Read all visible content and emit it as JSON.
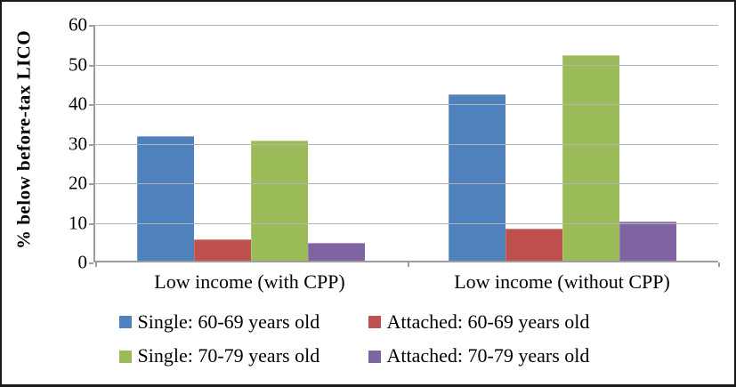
{
  "chart_data": {
    "type": "bar",
    "title": "",
    "ylabel": "% below before-tax LICO",
    "xlabel": "",
    "ylim": [
      0,
      60
    ],
    "yticks": [
      0,
      10,
      20,
      30,
      40,
      50,
      60
    ],
    "grid": true,
    "legend_position": "bottom",
    "categories": [
      "Low income (with CPP)",
      "Low income (without CPP)"
    ],
    "series": [
      {
        "name": "Single: 60-69 years old",
        "color": "#4F81BD",
        "values": [
          31.5,
          42
        ]
      },
      {
        "name": "Attached: 60-69 years old",
        "color": "#C0504D",
        "values": [
          5.5,
          8
        ]
      },
      {
        "name": "Single: 70-79 years old",
        "color": "#9BBB59",
        "values": [
          30.3,
          52
        ]
      },
      {
        "name": "Attached: 70-79 years old",
        "color": "#8064A2",
        "values": [
          4.5,
          10
        ]
      }
    ]
  },
  "style_colors": {
    "axis": "#9d9d9d",
    "gridline": "#b5b5b5",
    "frame_border": "#1a1a1a",
    "text": "#000000"
  }
}
